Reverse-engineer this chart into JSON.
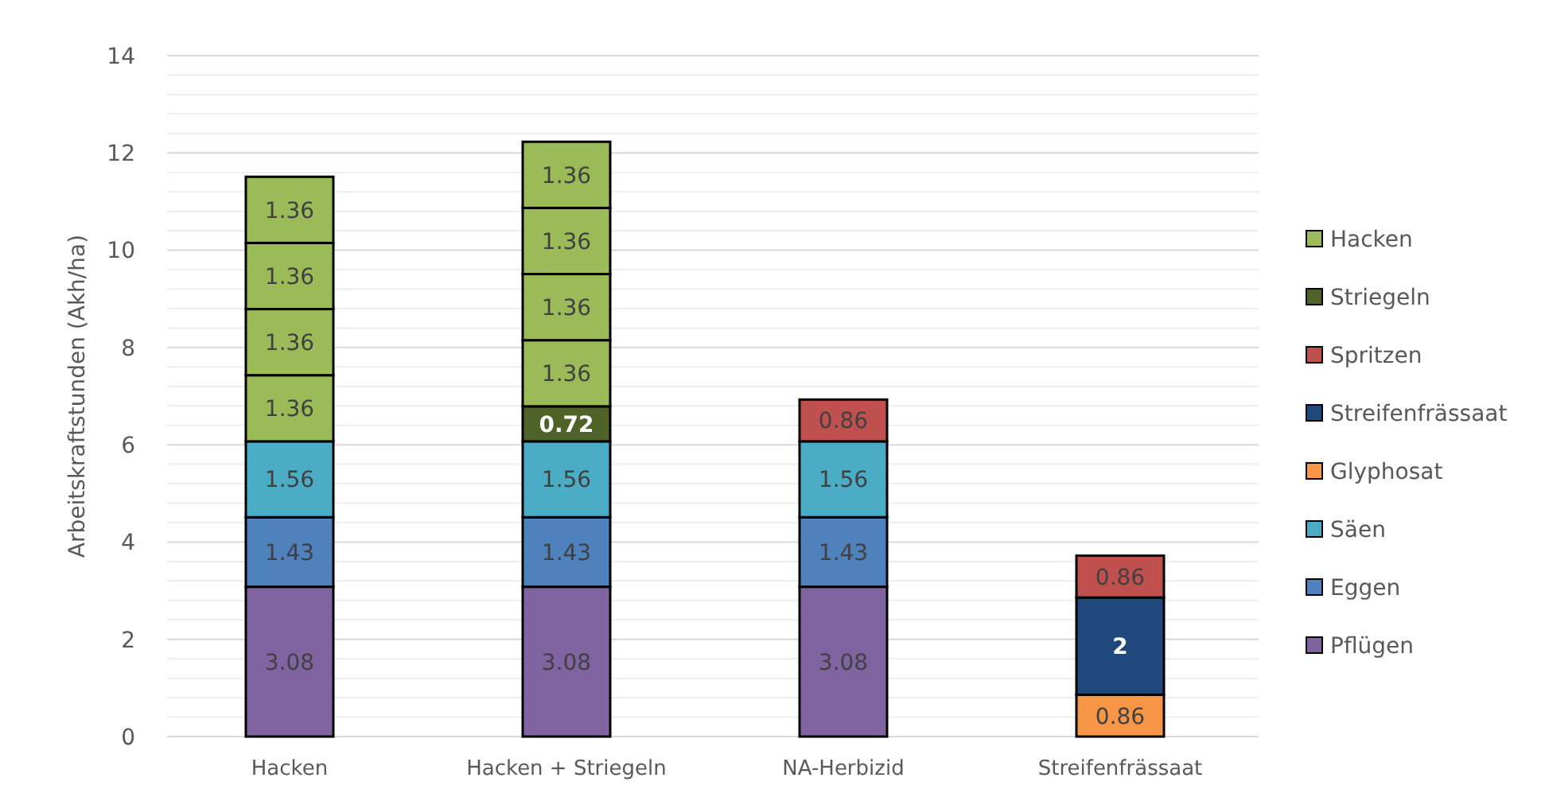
{
  "chart_data": {
    "type": "bar",
    "stacked": true,
    "ylabel": "Arbeitskraftstunden (Akh/ha)",
    "categories": [
      "Hacken",
      "Hacken + Striegeln",
      "NA-Herbizid",
      "Streifenfrässaat"
    ],
    "series": [
      {
        "name": "Pflügen",
        "color": "#8064a2",
        "values": [
          3.08,
          3.08,
          3.08,
          null
        ]
      },
      {
        "name": "Eggen",
        "color": "#4f81bd",
        "values": [
          1.43,
          1.43,
          1.43,
          null
        ]
      },
      {
        "name": "Säen",
        "color": "#4bacc6",
        "values": [
          1.56,
          1.56,
          1.56,
          null
        ]
      },
      {
        "name": "Glyphosat",
        "color": "#f79646",
        "values": [
          null,
          null,
          null,
          0.86
        ]
      },
      {
        "name": "Streifenfrässaat",
        "color": "#1f497d",
        "values": [
          null,
          null,
          null,
          2
        ]
      },
      {
        "name": "Spritzen",
        "color": "#c0504d",
        "values": [
          null,
          null,
          0.86,
          0.86
        ]
      },
      {
        "name": "Striegeln",
        "color": "#4f6228",
        "values": [
          null,
          0.72,
          null,
          null
        ]
      },
      {
        "color": "#9bbb59",
        "values": [
          1.36,
          1.36,
          null,
          null
        ]
      },
      {
        "color": "#9bbb59",
        "values": [
          1.36,
          1.36,
          null,
          null
        ]
      },
      {
        "color": "#9bbb59",
        "values": [
          1.36,
          1.36,
          null,
          null
        ]
      },
      {
        "name": "Hacken",
        "color": "#9bbb59",
        "values": [
          1.36,
          1.36,
          null,
          null
        ]
      }
    ],
    "ylim": [
      0,
      14
    ],
    "yticks": [
      0,
      {
        "value": 0.4,
        "label": null
      },
      {
        "value": 0.8,
        "label": null
      },
      {
        "value": 1.2,
        "label": null
      },
      {
        "value": 1.6,
        "label": null
      },
      2,
      {
        "value": 2.4,
        "label": null
      },
      {
        "value": 2.8,
        "label": null
      },
      {
        "value": 3.2,
        "label": null
      },
      {
        "value": 3.6,
        "label": null
      },
      4,
      {
        "value": 4.4,
        "label": null
      },
      {
        "value": 4.8,
        "label": null
      },
      {
        "value": 5.2,
        "label": null
      },
      {
        "value": 5.6,
        "label": null
      },
      6,
      {
        "value": 6.4,
        "label": null
      },
      {
        "value": 6.8,
        "label": null
      },
      {
        "value": 7.2,
        "label": null
      },
      {
        "value": 7.6,
        "label": null
      },
      8,
      {
        "value": 8.4,
        "label": null
      },
      {
        "value": 8.8,
        "label": null
      },
      {
        "value": 9.2,
        "label": null
      },
      {
        "value": 9.6,
        "label": null
      },
      10,
      {
        "value": 10.4,
        "label": null
      },
      {
        "value": 10.8,
        "label": null
      },
      {
        "value": 11.2,
        "label": null
      },
      {
        "value": 11.6,
        "label": null
      },
      12,
      {
        "value": 12.4,
        "label": null
      },
      {
        "value": 12.8,
        "label": null
      },
      {
        "value": 13.2,
        "label": null
      },
      {
        "value": 13.6,
        "label": null
      },
      14
    ],
    "grid": "y",
    "legend": "right",
    "data_labels": true
  }
}
